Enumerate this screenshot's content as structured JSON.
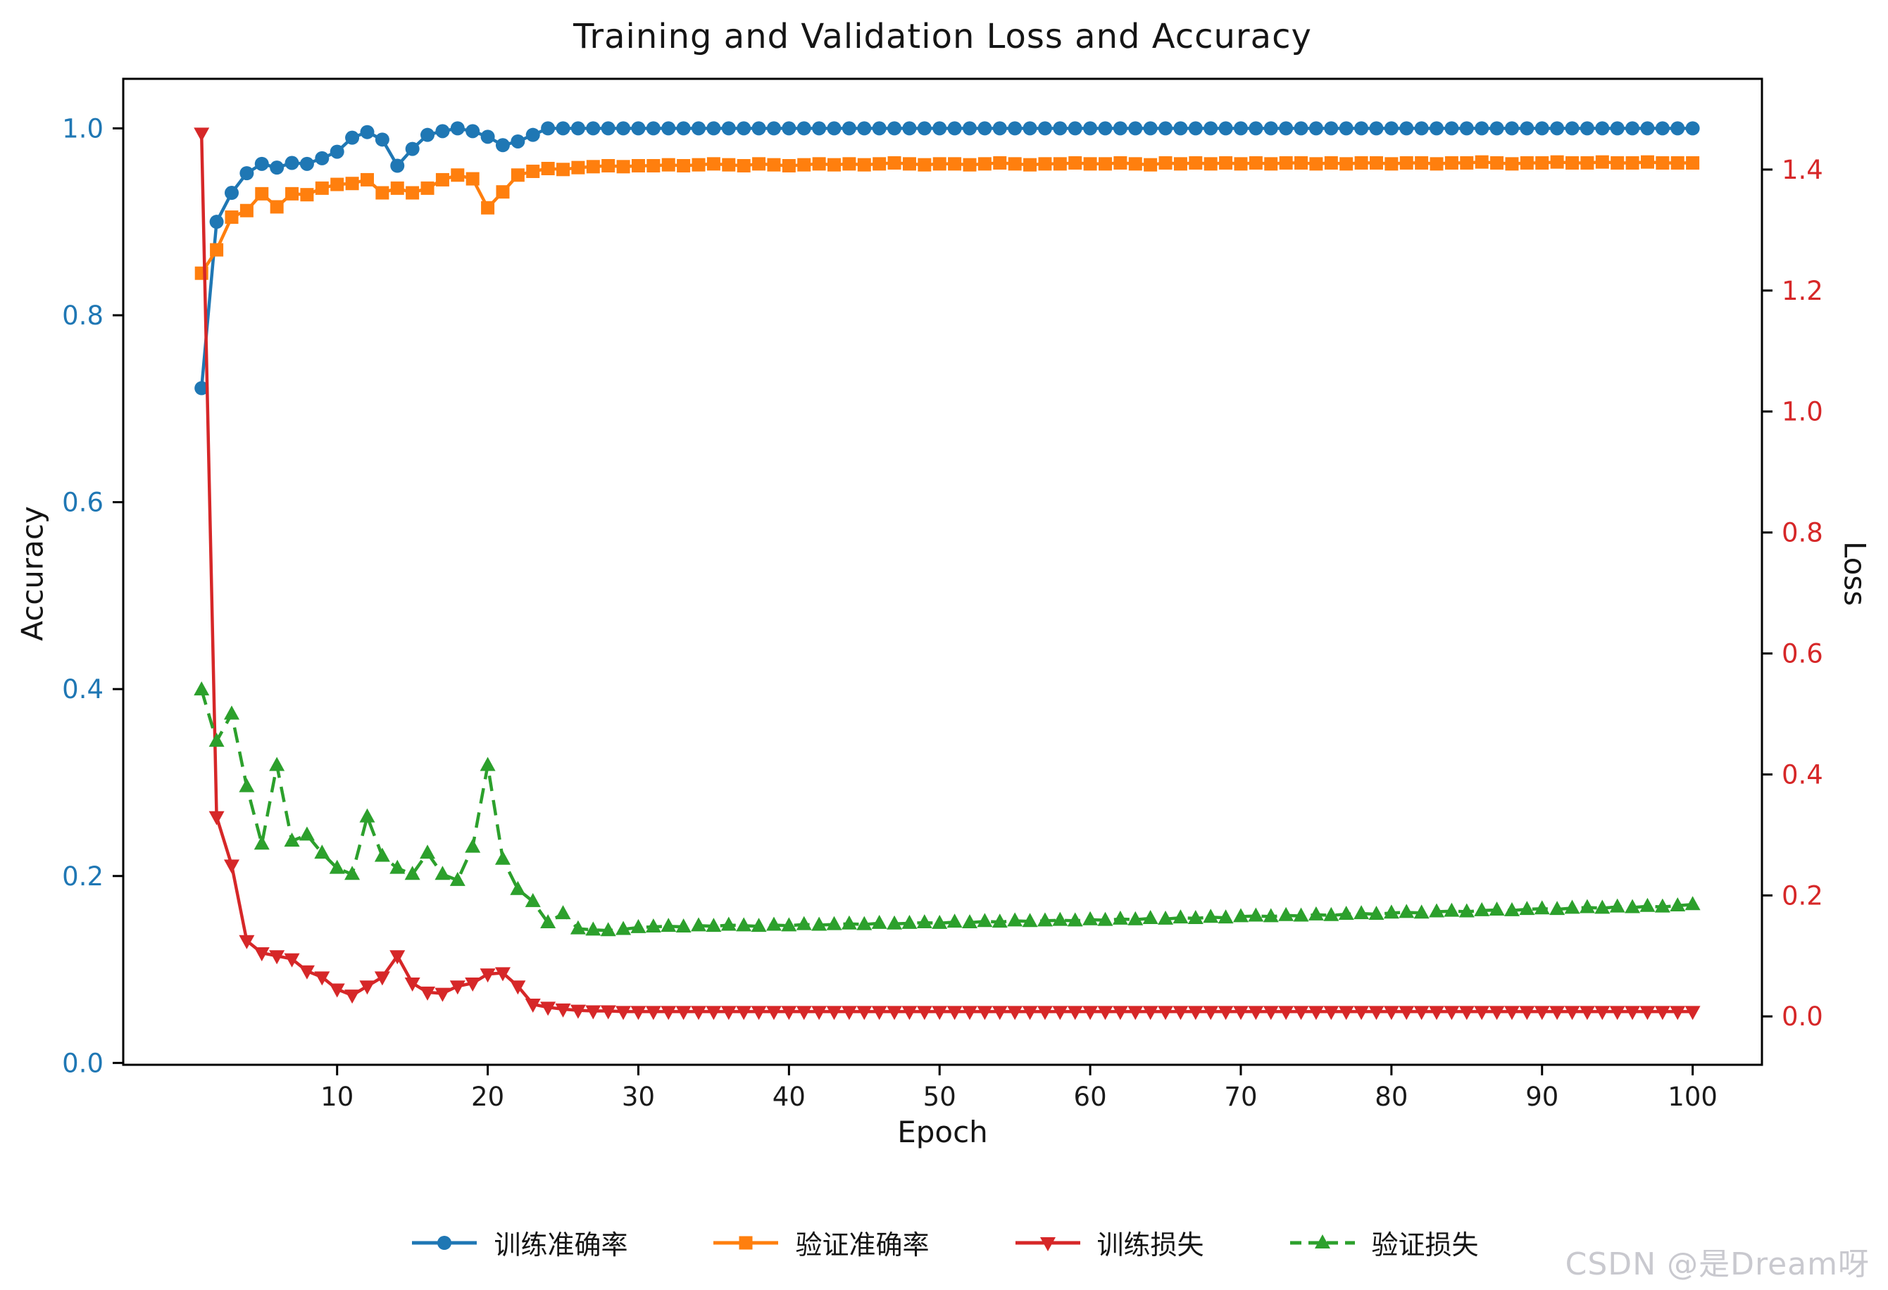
{
  "figure": {
    "background": "#ffffff"
  },
  "watermark": {
    "text": "CSDN @是Dream呀",
    "color": "#c9c9cf"
  },
  "chart_data": {
    "type": "line",
    "title": "Training and Validation Loss and Accuracy",
    "grid": false,
    "legend_position": "bottom-center",
    "x_axis": {
      "label": "Epoch",
      "ticks": [
        10,
        20,
        30,
        40,
        50,
        60,
        70,
        80,
        90,
        100
      ],
      "range": [
        -4.2,
        104.6
      ]
    },
    "left_axis": {
      "label": "Accuracy",
      "ticks": [
        0.0,
        0.2,
        0.4,
        0.6,
        0.8,
        1.0
      ],
      "range": [
        -0.002,
        1.053
      ],
      "tick_color": "#1f77b4"
    },
    "right_axis": {
      "label": "Loss",
      "ticks": [
        0.0,
        0.2,
        0.4,
        0.6,
        0.8,
        1.0,
        1.2,
        1.4
      ],
      "range": [
        -0.08,
        1.55
      ],
      "tick_color": "#d62728"
    },
    "x": [
      1,
      2,
      3,
      4,
      5,
      6,
      7,
      8,
      9,
      10,
      11,
      12,
      13,
      14,
      15,
      16,
      17,
      18,
      19,
      20,
      21,
      22,
      23,
      24,
      25,
      26,
      27,
      28,
      29,
      30,
      31,
      32,
      33,
      34,
      35,
      36,
      37,
      38,
      39,
      40,
      41,
      42,
      43,
      44,
      45,
      46,
      47,
      48,
      49,
      50,
      51,
      52,
      53,
      54,
      55,
      56,
      57,
      58,
      59,
      60,
      61,
      62,
      63,
      64,
      65,
      66,
      67,
      68,
      69,
      70,
      71,
      72,
      73,
      74,
      75,
      76,
      77,
      78,
      79,
      80,
      81,
      82,
      83,
      84,
      85,
      86,
      87,
      88,
      89,
      90,
      91,
      92,
      93,
      94,
      95,
      96,
      97,
      98,
      99,
      100
    ],
    "series": [
      {
        "name": "训练准确率",
        "axis": "left",
        "color": "#1f77b4",
        "marker": "circle",
        "line": "solid",
        "values": [
          0.722,
          0.9,
          0.931,
          0.952,
          0.962,
          0.958,
          0.963,
          0.962,
          0.968,
          0.975,
          0.99,
          0.996,
          0.988,
          0.96,
          0.978,
          0.993,
          0.997,
          1.0,
          0.997,
          0.991,
          0.982,
          0.986,
          0.993,
          1.0,
          1.0,
          1.0,
          1.0,
          1.0,
          1.0,
          1.0,
          1.0,
          1.0,
          1.0,
          1.0,
          1.0,
          1.0,
          1.0,
          1.0,
          1.0,
          1.0,
          1.0,
          1.0,
          1.0,
          1.0,
          1.0,
          1.0,
          1.0,
          1.0,
          1.0,
          1.0,
          1.0,
          1.0,
          1.0,
          1.0,
          1.0,
          1.0,
          1.0,
          1.0,
          1.0,
          1.0,
          1.0,
          1.0,
          1.0,
          1.0,
          1.0,
          1.0,
          1.0,
          1.0,
          1.0,
          1.0,
          1.0,
          1.0,
          1.0,
          1.0,
          1.0,
          1.0,
          1.0,
          1.0,
          1.0,
          1.0,
          1.0,
          1.0,
          1.0,
          1.0,
          1.0,
          1.0,
          1.0,
          1.0,
          1.0,
          1.0,
          1.0,
          1.0,
          1.0,
          1.0,
          1.0,
          1.0,
          1.0,
          1.0,
          1.0,
          1.0
        ]
      },
      {
        "name": "验证准确率",
        "axis": "left",
        "color": "#ff7f0e",
        "marker": "square",
        "line": "solid",
        "values": [
          0.845,
          0.87,
          0.905,
          0.912,
          0.93,
          0.916,
          0.93,
          0.929,
          0.936,
          0.94,
          0.941,
          0.945,
          0.931,
          0.936,
          0.931,
          0.936,
          0.945,
          0.95,
          0.946,
          0.915,
          0.932,
          0.95,
          0.954,
          0.957,
          0.956,
          0.958,
          0.959,
          0.96,
          0.959,
          0.96,
          0.96,
          0.961,
          0.96,
          0.961,
          0.962,
          0.961,
          0.96,
          0.962,
          0.961,
          0.96,
          0.961,
          0.962,
          0.961,
          0.962,
          0.961,
          0.962,
          0.963,
          0.962,
          0.961,
          0.962,
          0.962,
          0.961,
          0.962,
          0.963,
          0.962,
          0.961,
          0.962,
          0.962,
          0.963,
          0.962,
          0.962,
          0.963,
          0.962,
          0.961,
          0.963,
          0.962,
          0.963,
          0.962,
          0.963,
          0.962,
          0.963,
          0.962,
          0.963,
          0.963,
          0.962,
          0.963,
          0.962,
          0.963,
          0.963,
          0.962,
          0.963,
          0.963,
          0.962,
          0.963,
          0.963,
          0.964,
          0.963,
          0.962,
          0.963,
          0.963,
          0.964,
          0.963,
          0.963,
          0.964,
          0.963,
          0.963,
          0.964,
          0.963,
          0.963,
          0.963
        ]
      },
      {
        "name": "训练损失",
        "axis": "right",
        "color": "#d62728",
        "marker": "triangle-down",
        "line": "solid",
        "values": [
          1.46,
          0.33,
          0.25,
          0.125,
          0.105,
          0.1,
          0.095,
          0.075,
          0.065,
          0.045,
          0.035,
          0.05,
          0.065,
          0.1,
          0.055,
          0.04,
          0.038,
          0.05,
          0.055,
          0.07,
          0.072,
          0.05,
          0.02,
          0.015,
          0.012,
          0.01,
          0.009,
          0.009,
          0.008,
          0.008,
          0.008,
          0.008,
          0.008,
          0.008,
          0.008,
          0.008,
          0.008,
          0.008,
          0.008,
          0.008,
          0.008,
          0.008,
          0.008,
          0.008,
          0.008,
          0.008,
          0.008,
          0.008,
          0.008,
          0.008,
          0.008,
          0.008,
          0.008,
          0.008,
          0.008,
          0.008,
          0.008,
          0.008,
          0.008,
          0.008,
          0.008,
          0.008,
          0.008,
          0.008,
          0.008,
          0.008,
          0.008,
          0.008,
          0.008,
          0.008,
          0.008,
          0.008,
          0.008,
          0.008,
          0.008,
          0.008,
          0.008,
          0.008,
          0.008,
          0.008,
          0.008,
          0.008,
          0.008,
          0.008,
          0.008,
          0.008,
          0.008,
          0.008,
          0.008,
          0.008,
          0.008,
          0.008,
          0.008,
          0.008,
          0.008,
          0.008,
          0.008,
          0.008,
          0.008,
          0.008
        ]
      },
      {
        "name": "验证损失",
        "axis": "right",
        "color": "#2ca02c",
        "marker": "triangle-up",
        "line": "dashed",
        "values": [
          0.54,
          0.455,
          0.5,
          0.38,
          0.285,
          0.415,
          0.29,
          0.3,
          0.27,
          0.245,
          0.235,
          0.33,
          0.265,
          0.245,
          0.235,
          0.27,
          0.235,
          0.225,
          0.28,
          0.415,
          0.26,
          0.21,
          0.19,
          0.155,
          0.17,
          0.145,
          0.143,
          0.142,
          0.144,
          0.147,
          0.148,
          0.149,
          0.148,
          0.15,
          0.149,
          0.151,
          0.15,
          0.149,
          0.151,
          0.15,
          0.152,
          0.151,
          0.152,
          0.153,
          0.152,
          0.154,
          0.153,
          0.154,
          0.155,
          0.154,
          0.156,
          0.155,
          0.157,
          0.156,
          0.158,
          0.157,
          0.158,
          0.159,
          0.158,
          0.16,
          0.159,
          0.161,
          0.16,
          0.162,
          0.161,
          0.163,
          0.162,
          0.164,
          0.163,
          0.165,
          0.166,
          0.165,
          0.167,
          0.166,
          0.168,
          0.167,
          0.169,
          0.17,
          0.169,
          0.171,
          0.172,
          0.171,
          0.173,
          0.174,
          0.173,
          0.175,
          0.176,
          0.175,
          0.177,
          0.178,
          0.177,
          0.179,
          0.18,
          0.179,
          0.181,
          0.18,
          0.182,
          0.181,
          0.183,
          0.185
        ]
      }
    ]
  }
}
